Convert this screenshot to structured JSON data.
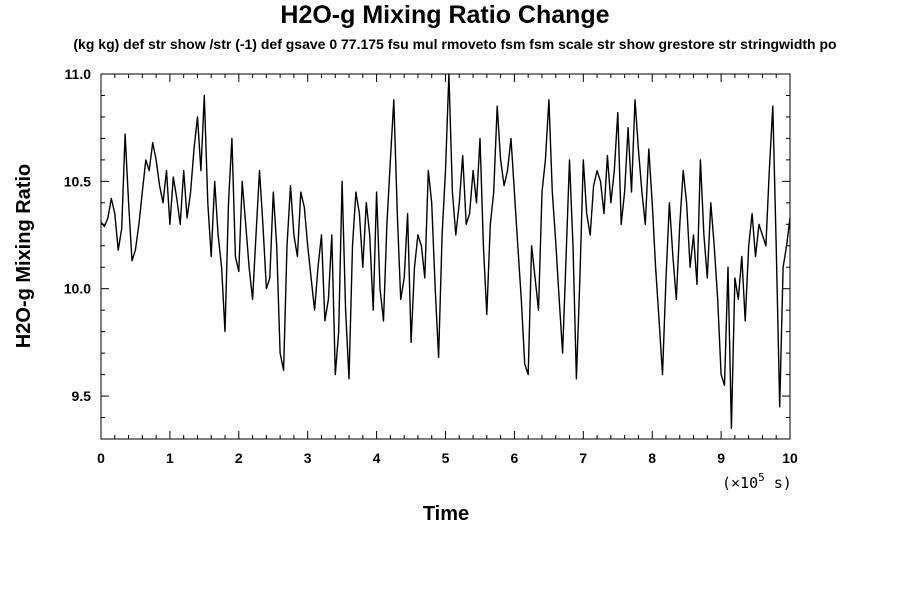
{
  "chart_data": {
    "type": "line",
    "title": "H2O-g Mixing Ratio Change",
    "subtitle": "(kg kg) def str show /str (-1) def gsave 0 77.175 fsu mul rmoveto fsm fsm scale str show grestore str stringwidth po",
    "xlabel": "Time",
    "ylabel": "H2O-g Mixing Ratio",
    "x_unit": {
      "prefix": "(×10",
      "exponent": "5",
      "suffix": " s)"
    },
    "xlim": [
      0,
      10
    ],
    "ylim": [
      9.3,
      11.0
    ],
    "x_ticks": [
      0,
      1,
      2,
      3,
      4,
      5,
      6,
      7,
      8,
      9,
      10
    ],
    "x_tick_labels": [
      "0",
      "1",
      "2",
      "3",
      "4",
      "5",
      "6",
      "7",
      "8",
      "9",
      "10"
    ],
    "y_ticks": [
      9.5,
      10.0,
      10.5,
      11.0
    ],
    "y_tick_labels": [
      "9.5",
      "10.0",
      "10.5",
      "11.0"
    ],
    "grid": false,
    "series": [
      {
        "color": "#000000",
        "x": [
          0,
          0.05,
          0.1,
          0.15,
          0.2,
          0.25,
          0.3,
          0.35,
          0.4,
          0.45,
          0.5,
          0.55,
          0.6,
          0.65,
          0.7,
          0.75,
          0.8,
          0.85,
          0.9,
          0.95,
          1.0,
          1.05,
          1.1,
          1.15,
          1.2,
          1.25,
          1.3,
          1.35,
          1.4,
          1.45,
          1.5,
          1.55,
          1.6,
          1.65,
          1.7,
          1.75,
          1.8,
          1.85,
          1.9,
          1.95,
          2.0,
          2.05,
          2.1,
          2.15,
          2.2,
          2.25,
          2.3,
          2.35,
          2.4,
          2.45,
          2.5,
          2.55,
          2.6,
          2.65,
          2.7,
          2.75,
          2.8,
          2.85,
          2.9,
          2.95,
          3.0,
          3.05,
          3.1,
          3.15,
          3.2,
          3.25,
          3.3,
          3.35,
          3.4,
          3.45,
          3.5,
          3.55,
          3.6,
          3.65,
          3.7,
          3.75,
          3.8,
          3.85,
          3.9,
          3.95,
          4.0,
          4.05,
          4.1,
          4.15,
          4.2,
          4.25,
          4.3,
          4.35,
          4.4,
          4.45,
          4.5,
          4.55,
          4.6,
          4.65,
          4.7,
          4.75,
          4.8,
          4.85,
          4.9,
          4.95,
          5.0,
          5.05,
          5.1,
          5.15,
          5.2,
          5.25,
          5.3,
          5.35,
          5.4,
          5.45,
          5.5,
          5.55,
          5.6,
          5.65,
          5.7,
          5.75,
          5.8,
          5.85,
          5.9,
          5.95,
          6.0,
          6.05,
          6.1,
          6.15,
          6.2,
          6.25,
          6.3,
          6.35,
          6.4,
          6.45,
          6.5,
          6.55,
          6.6,
          6.65,
          6.7,
          6.75,
          6.8,
          6.85,
          6.9,
          6.95,
          7.0,
          7.05,
          7.1,
          7.15,
          7.2,
          7.25,
          7.3,
          7.35,
          7.4,
          7.45,
          7.5,
          7.55,
          7.6,
          7.65,
          7.7,
          7.75,
          7.8,
          7.85,
          7.9,
          7.95,
          8.0,
          8.05,
          8.1,
          8.15,
          8.2,
          8.25,
          8.3,
          8.35,
          8.4,
          8.45,
          8.5,
          8.55,
          8.6,
          8.65,
          8.7,
          8.75,
          8.8,
          8.85,
          8.9,
          8.95,
          9.0,
          9.05,
          9.1,
          9.15,
          9.2,
          9.25,
          9.3,
          9.35,
          9.4,
          9.45,
          9.5,
          9.55,
          9.6,
          9.65,
          9.7,
          9.75,
          9.8,
          9.85,
          9.9,
          9.95,
          10.0
        ],
        "values": [
          10.31,
          10.29,
          10.33,
          10.42,
          10.35,
          10.18,
          10.28,
          10.72,
          10.4,
          10.13,
          10.18,
          10.3,
          10.45,
          10.6,
          10.55,
          10.68,
          10.6,
          10.48,
          10.4,
          10.55,
          10.3,
          10.52,
          10.42,
          10.3,
          10.55,
          10.33,
          10.45,
          10.65,
          10.8,
          10.55,
          10.9,
          10.4,
          10.15,
          10.5,
          10.25,
          10.1,
          9.8,
          10.4,
          10.7,
          10.15,
          10.08,
          10.5,
          10.3,
          10.1,
          9.95,
          10.25,
          10.55,
          10.3,
          10.0,
          10.05,
          10.45,
          10.2,
          9.7,
          9.62,
          10.2,
          10.48,
          10.25,
          10.15,
          10.45,
          10.38,
          10.2,
          10.05,
          9.9,
          10.1,
          10.25,
          9.85,
          9.95,
          10.25,
          9.6,
          9.8,
          10.5,
          9.9,
          9.58,
          10.2,
          10.45,
          10.35,
          10.1,
          10.4,
          10.25,
          9.9,
          10.45,
          10.0,
          9.85,
          10.3,
          10.6,
          10.88,
          10.35,
          9.95,
          10.05,
          10.35,
          9.75,
          10.1,
          10.25,
          10.2,
          10.05,
          10.55,
          10.4,
          10.0,
          9.68,
          10.25,
          10.55,
          11.0,
          10.45,
          10.25,
          10.4,
          10.62,
          10.3,
          10.35,
          10.55,
          10.4,
          10.7,
          10.2,
          9.88,
          10.3,
          10.45,
          10.85,
          10.6,
          10.48,
          10.55,
          10.7,
          10.45,
          10.2,
          9.95,
          9.65,
          9.6,
          10.2,
          10.05,
          9.9,
          10.45,
          10.6,
          10.88,
          10.45,
          10.22,
          9.95,
          9.7,
          10.15,
          10.6,
          10.2,
          9.58,
          10.05,
          10.6,
          10.35,
          10.25,
          10.48,
          10.55,
          10.5,
          10.35,
          10.62,
          10.4,
          10.55,
          10.82,
          10.3,
          10.45,
          10.75,
          10.45,
          10.88,
          10.65,
          10.45,
          10.3,
          10.65,
          10.4,
          10.1,
          9.85,
          9.6,
          10.05,
          10.4,
          10.15,
          9.95,
          10.3,
          10.55,
          10.4,
          10.1,
          10.25,
          10.02,
          10.6,
          10.25,
          10.05,
          10.4,
          10.2,
          9.95,
          9.6,
          9.55,
          10.1,
          9.35,
          10.05,
          9.95,
          10.15,
          9.85,
          10.2,
          10.35,
          10.15,
          10.3,
          10.25,
          10.2,
          10.55,
          10.85,
          10.2,
          9.45,
          10.1,
          10.2,
          10.33
        ]
      }
    ]
  }
}
